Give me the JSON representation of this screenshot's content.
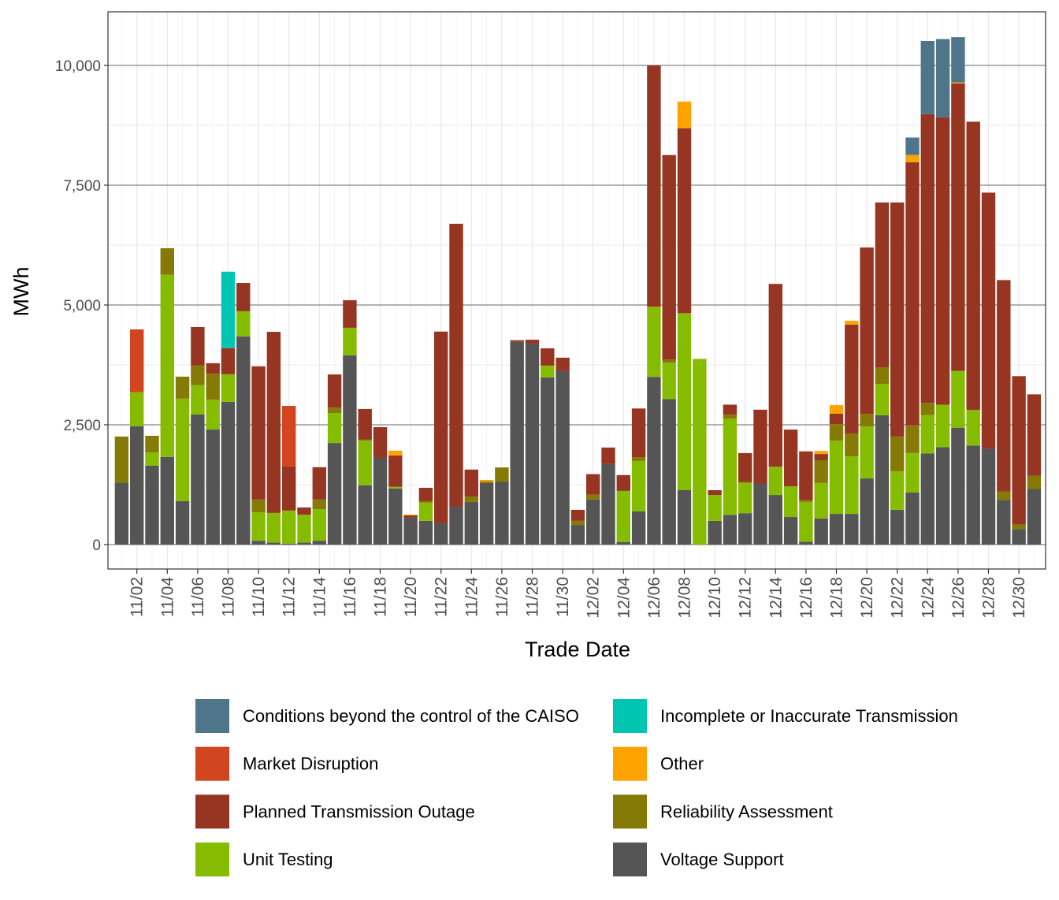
{
  "chart_data": {
    "type": "bar",
    "stacked": true,
    "xlabel": "Trade Date",
    "ylabel": "MWh",
    "ylim": [
      -510,
      11120
    ],
    "y_ticks": [
      0,
      2500,
      5000,
      7500,
      10000
    ],
    "y_tick_labels": [
      "0",
      "2,500",
      "5,000",
      "7,500",
      "10,000"
    ],
    "grid": true,
    "legend_position": "bottom",
    "categories": [
      "11/01",
      "11/02",
      "11/03",
      "11/04",
      "11/05",
      "11/06",
      "11/07",
      "11/08",
      "11/09",
      "11/10",
      "11/11",
      "11/12",
      "11/13",
      "11/14",
      "11/15",
      "11/16",
      "11/17",
      "11/18",
      "11/19",
      "11/20",
      "11/21",
      "11/22",
      "11/23",
      "11/24",
      "11/25",
      "11/26",
      "11/27",
      "11/28",
      "11/29",
      "11/30",
      "12/01",
      "12/02",
      "12/03",
      "12/04",
      "12/05",
      "12/06",
      "12/07",
      "12/08",
      "12/09",
      "12/10",
      "12/11",
      "12/12",
      "12/13",
      "12/14",
      "12/15",
      "12/16",
      "12/17",
      "12/18",
      "12/19",
      "12/20",
      "12/21",
      "12/22",
      "12/23",
      "12/24",
      "12/25",
      "12/26",
      "12/27",
      "12/28",
      "12/29",
      "12/30",
      "12/31"
    ],
    "x_tick_labels": [
      "11/02",
      "11/04",
      "11/06",
      "11/08",
      "11/10",
      "11/12",
      "11/14",
      "11/16",
      "11/18",
      "11/20",
      "11/22",
      "11/24",
      "11/26",
      "11/28",
      "11/30",
      "12/02",
      "12/04",
      "12/06",
      "12/08",
      "12/10",
      "12/12",
      "12/14",
      "12/16",
      "12/18",
      "12/20",
      "12/22",
      "12/24",
      "12/26",
      "12/28",
      "12/30"
    ],
    "series": [
      {
        "name": "Voltage Support",
        "color": "#555555",
        "values": [
          1290,
          2470,
          1645,
          1830,
          905,
          2715,
          2400,
          2980,
          4345,
          80,
          40,
          20,
          40,
          80,
          2120,
          3950,
          1235,
          1810,
          1170,
          560,
          495,
          445,
          790,
          890,
          1285,
          1315,
          4230,
          4195,
          3490,
          3620,
          410,
          940,
          1680,
          55,
          695,
          3500,
          3035,
          1135,
          0,
          495,
          620,
          655,
          1275,
          1035,
          575,
          60,
          545,
          640,
          640,
          1380,
          2700,
          725,
          1085,
          1900,
          2035,
          2440,
          2065,
          2000,
          930,
          320,
          1160
        ]
      },
      {
        "name": "Unit Testing",
        "color": "#86BC00",
        "values": [
          0,
          710,
          280,
          3800,
          2140,
          610,
          625,
          575,
          525,
          595,
          620,
          690,
          585,
          660,
          625,
          575,
          935,
          0,
          35,
          0,
          380,
          0,
          0,
          0,
          0,
          0,
          0,
          0,
          245,
          0,
          0,
          0,
          0,
          1065,
          1050,
          1465,
          760,
          3695,
          3875,
          540,
          2005,
          625,
          0,
          590,
          640,
          830,
          740,
          1530,
          1200,
          1085,
          655,
          805,
          825,
          805,
          885,
          1185,
          745,
          0,
          0,
          0,
          0
        ]
      },
      {
        "name": "Reliability Assessment",
        "color": "#857A05",
        "values": [
          965,
          0,
          345,
          555,
          460,
          415,
          545,
          0,
          0,
          265,
          0,
          0,
          0,
          200,
          115,
          0,
          20,
          0,
          0,
          0,
          30,
          0,
          0,
          115,
          30,
          295,
          0,
          0,
          0,
          0,
          85,
          100,
          0,
          0,
          80,
          0,
          65,
          0,
          0,
          0,
          85,
          35,
          0,
          0,
          0,
          35,
          475,
          345,
          480,
          265,
          345,
          725,
          580,
          250,
          0,
          0,
          0,
          0,
          180,
          95,
          275
        ]
      },
      {
        "name": "Planned Transmission Outage",
        "color": "#963521",
        "values": [
          0,
          0,
          0,
          0,
          0,
          800,
          215,
          545,
          590,
          2780,
          3780,
          920,
          150,
          675,
          690,
          575,
          640,
          640,
          655,
          50,
          280,
          4000,
          5905,
          560,
          0,
          0,
          35,
          80,
          360,
          280,
          230,
          430,
          345,
          330,
          1015,
          5035,
          4270,
          3860,
          0,
          100,
          210,
          595,
          1540,
          3815,
          1185,
          1020,
          130,
          215,
          2270,
          3470,
          3440,
          4885,
          5490,
          6030,
          6000,
          6000,
          6015,
          5345,
          4410,
          3100,
          1700
        ]
      },
      {
        "name": "Other",
        "color": "#FFA300",
        "values": [
          0,
          0,
          0,
          0,
          0,
          0,
          0,
          0,
          0,
          0,
          0,
          0,
          0,
          0,
          0,
          0,
          0,
          0,
          100,
          15,
          0,
          0,
          0,
          0,
          35,
          0,
          0,
          0,
          0,
          0,
          0,
          0,
          0,
          0,
          0,
          0,
          0,
          555,
          0,
          0,
          0,
          0,
          0,
          0,
          0,
          0,
          65,
          180,
          80,
          0,
          0,
          0,
          150,
          0,
          0,
          20,
          0,
          0,
          0,
          0,
          0
        ]
      },
      {
        "name": "Market Disruption",
        "color": "#D14520",
        "values": [
          0,
          1310,
          0,
          0,
          0,
          0,
          0,
          0,
          0,
          0,
          0,
          1265,
          0,
          0,
          0,
          0,
          0,
          0,
          0,
          0,
          0,
          0,
          0,
          0,
          0,
          0,
          0,
          0,
          0,
          0,
          0,
          0,
          0,
          0,
          0,
          0,
          0,
          0,
          0,
          0,
          0,
          0,
          0,
          0,
          0,
          0,
          0,
          0,
          0,
          0,
          0,
          0,
          0,
          0,
          0,
          0,
          0,
          0,
          0,
          0,
          0
        ]
      },
      {
        "name": "Incomplete or Inaccurate Transmission",
        "color": "#00C5B0",
        "values": [
          0,
          0,
          0,
          0,
          0,
          0,
          0,
          1595,
          0,
          0,
          0,
          0,
          0,
          0,
          0,
          0,
          0,
          0,
          0,
          0,
          0,
          0,
          0,
          0,
          0,
          0,
          0,
          0,
          0,
          0,
          0,
          0,
          0,
          0,
          0,
          0,
          0,
          0,
          0,
          0,
          0,
          0,
          0,
          0,
          0,
          0,
          0,
          0,
          0,
          0,
          0,
          0,
          0,
          0,
          0,
          0,
          0,
          0,
          0,
          0,
          0
        ]
      },
      {
        "name": "Conditions beyond the control of the CAISO",
        "color": "#4F758B",
        "values": [
          0,
          0,
          0,
          0,
          0,
          0,
          0,
          0,
          0,
          0,
          0,
          0,
          0,
          0,
          0,
          0,
          0,
          0,
          0,
          0,
          0,
          0,
          0,
          0,
          0,
          0,
          0,
          0,
          0,
          0,
          0,
          0,
          0,
          0,
          0,
          0,
          0,
          0,
          0,
          0,
          0,
          0,
          0,
          0,
          0,
          0,
          0,
          0,
          0,
          0,
          0,
          0,
          365,
          1525,
          1630,
          945,
          0,
          0,
          0,
          0,
          0
        ]
      }
    ],
    "legend": [
      {
        "label": "Conditions beyond the control of the CAISO",
        "color": "#4F758B"
      },
      {
        "label": "Incomplete or Inaccurate Transmission",
        "color": "#00C5B0"
      },
      {
        "label": "Market Disruption",
        "color": "#D14520"
      },
      {
        "label": "Other",
        "color": "#FFA300"
      },
      {
        "label": "Planned Transmission Outage",
        "color": "#963521"
      },
      {
        "label": "Reliability Assessment",
        "color": "#857A05"
      },
      {
        "label": "Unit Testing",
        "color": "#86BC00"
      },
      {
        "label": "Voltage Support",
        "color": "#555555"
      }
    ]
  }
}
